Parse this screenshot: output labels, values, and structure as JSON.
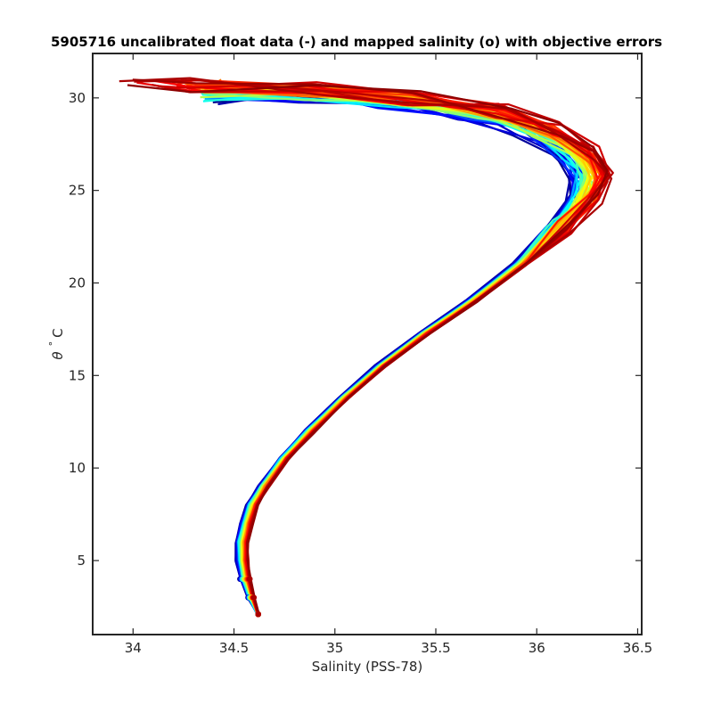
{
  "chart_data": {
    "type": "line",
    "title": "5905716 uncalibrated float data (-) and mapped salinity (o) with objective errors",
    "xlabel": "Salinity (PSS-78)",
    "ylabel_symbol": "θ",
    "ylabel_sup": "°",
    "ylabel_unit": "C",
    "xlim": [
      33.8,
      36.52
    ],
    "ylim": [
      1.0,
      32.4
    ],
    "xticks": [
      34,
      34.5,
      35,
      35.5,
      36,
      36.5
    ],
    "xtick_labels": [
      "34",
      "34.5",
      "35",
      "35.5",
      "36",
      "36.5"
    ],
    "yticks": [
      5,
      10,
      15,
      20,
      25,
      30
    ],
    "ytick_labels": [
      "5",
      "10",
      "15",
      "20",
      "25",
      "30"
    ],
    "grid": false,
    "legend": "none",
    "colormap": "jet",
    "colormap_stops": [
      "#00008f",
      "#0000ff",
      "#00ffff",
      "#7fff7f",
      "#ffff00",
      "#ff7f00",
      "#ff0000",
      "#8f0000"
    ],
    "profile_count": 60,
    "series": [
      {
        "profile": "first",
        "color": "#0a14c8",
        "x": [
          34.62,
          34.57,
          34.53,
          34.51,
          34.51,
          34.53,
          34.56,
          34.62,
          34.72,
          34.85,
          35.02,
          35.2,
          35.42,
          35.65,
          35.88,
          36.05,
          36.15,
          36.18,
          36.1,
          35.9,
          35.6,
          35.2,
          34.8,
          34.4
        ],
        "y": [
          2.1,
          3.0,
          4.0,
          5.0,
          6.0,
          7.0,
          8.0,
          9.0,
          10.5,
          12.0,
          13.8,
          15.5,
          17.3,
          19.0,
          21.0,
          23.0,
          24.5,
          25.8,
          27.0,
          28.3,
          29.2,
          29.8,
          30.1,
          30.0
        ]
      },
      {
        "profile": "last",
        "color": "#cc0000",
        "x": [
          34.62,
          34.6,
          34.58,
          34.57,
          34.57,
          34.59,
          34.62,
          34.67,
          34.77,
          34.9,
          35.07,
          35.25,
          35.47,
          35.7,
          35.95,
          36.15,
          36.3,
          36.36,
          36.3,
          36.12,
          35.85,
          35.4,
          34.9,
          34.3,
          33.92
        ],
        "y": [
          2.1,
          3.0,
          4.0,
          5.0,
          6.0,
          7.0,
          8.0,
          9.0,
          10.5,
          12.0,
          13.8,
          15.5,
          17.3,
          19.0,
          21.0,
          23.0,
          24.5,
          25.8,
          27.0,
          28.3,
          29.3,
          30.0,
          30.5,
          30.7,
          30.8
        ]
      }
    ]
  }
}
